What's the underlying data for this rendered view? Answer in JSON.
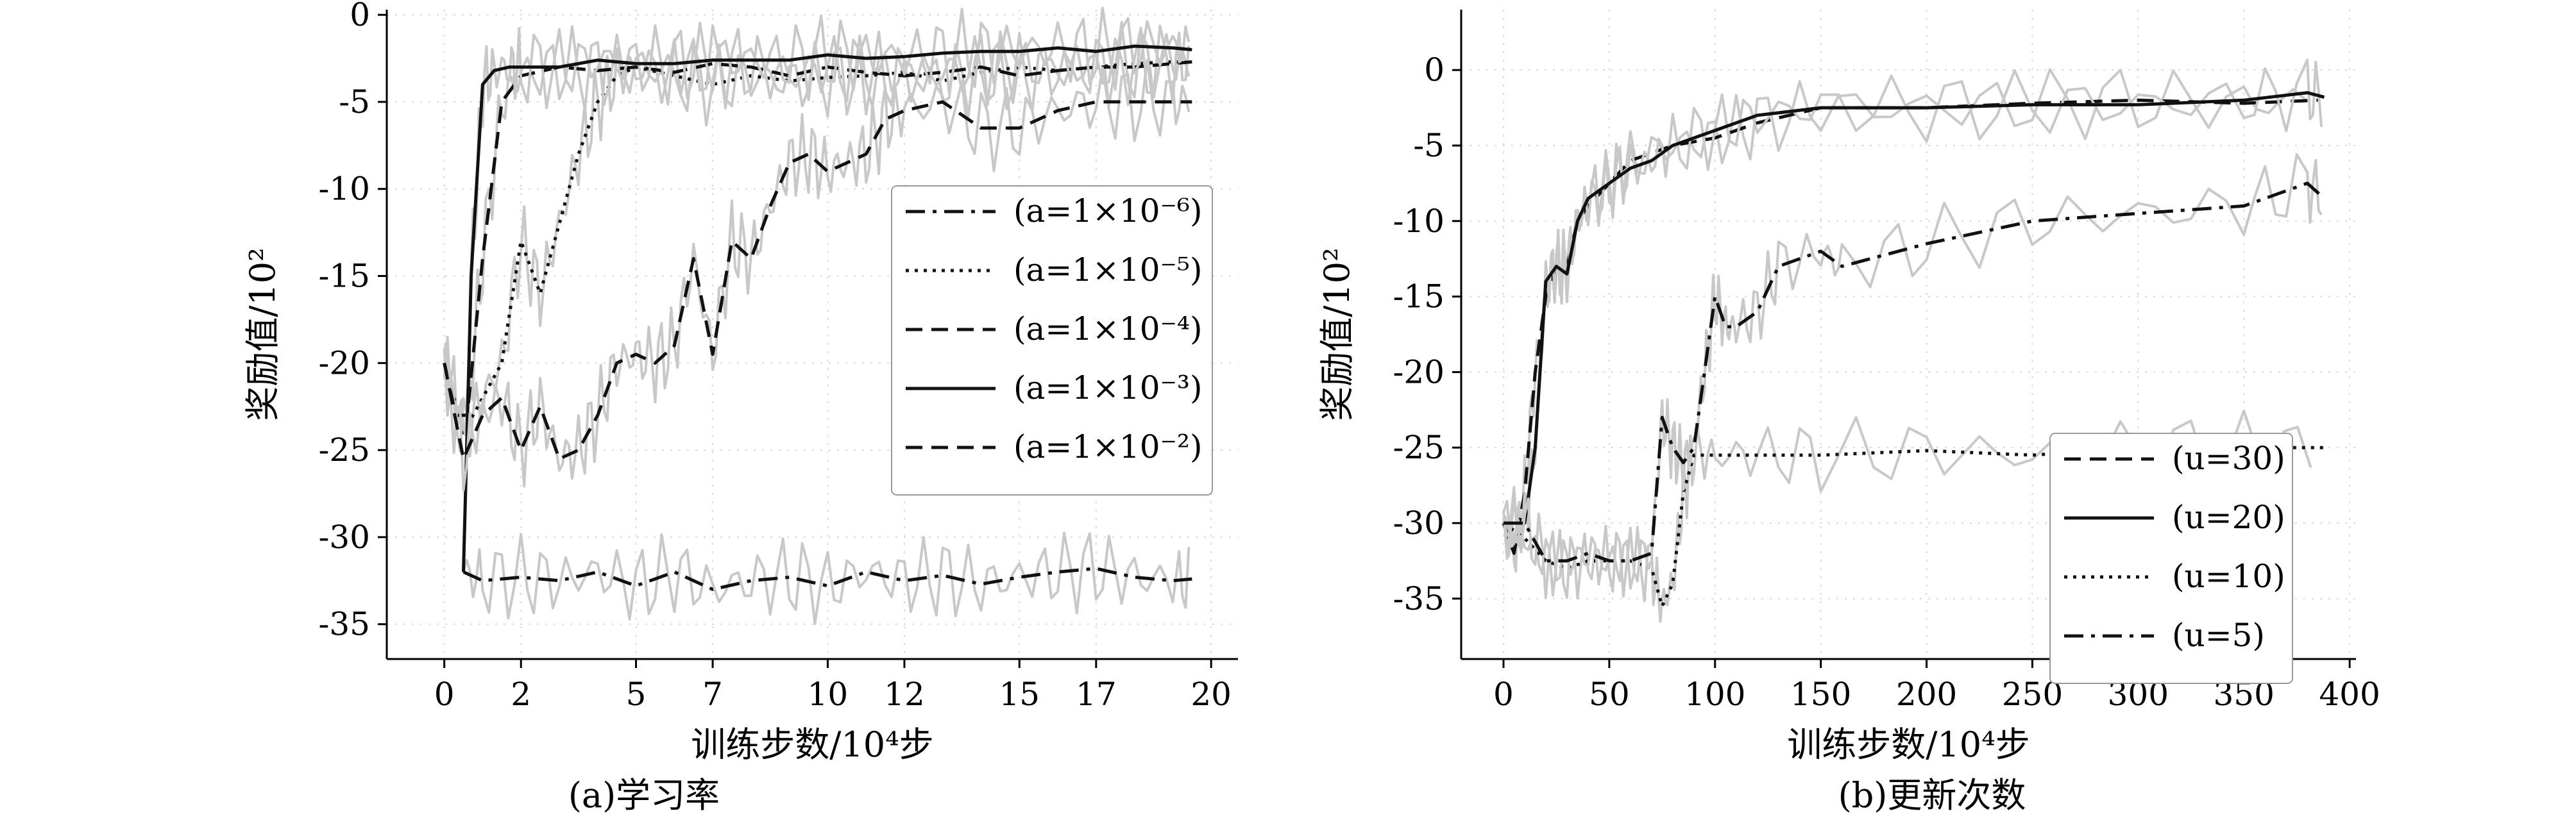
{
  "charts": {
    "a": {
      "caption": "(a)学习率",
      "xlabel": "训练步数/10⁴步",
      "ylabel": "奖励值/10²",
      "legend": [
        "(a=1×10⁻⁶)",
        "(a=1×10⁻⁵)",
        "(a=1×10⁻⁴)",
        "(a=1×10⁻³)",
        "(a=1×10⁻²)"
      ]
    },
    "b": {
      "caption": "(b)更新次数",
      "xlabel": "训练步数/10⁴步",
      "ylabel": "奖励值/10²",
      "legend": [
        "(u=30)",
        "(u=20)",
        "(u=10)",
        "(u=5)"
      ]
    }
  },
  "chart_data": [
    {
      "type": "line",
      "xlim": [
        -1.5,
        20.7
      ],
      "ylim": [
        -37,
        0.3
      ],
      "xticks": [
        0,
        2,
        5,
        7,
        10,
        12,
        15,
        17,
        20
      ],
      "yticks": [
        0,
        -5,
        -10,
        -15,
        -20,
        -25,
        -30,
        -35
      ],
      "grid": true,
      "legend_position": "center-right",
      "series": [
        {
          "name": "(a=1×10⁻⁶)",
          "style": "dashdot",
          "x": [
            0.5,
            1,
            2,
            3,
            4,
            5,
            6,
            7,
            8,
            9,
            10,
            11,
            12,
            13,
            14,
            15,
            16,
            17,
            18,
            19,
            19.5
          ],
          "y": [
            -32,
            -32.5,
            -32.3,
            -32.5,
            -32,
            -32.8,
            -32,
            -33,
            -32.5,
            -32.3,
            -32.8,
            -32,
            -32.5,
            -32.2,
            -32.7,
            -32.3,
            -32,
            -31.8,
            -32.3,
            -32.5,
            -32.4
          ]
        },
        {
          "name": "(a=1×10⁻⁵)",
          "style": "dotted",
          "x": [
            0,
            0.5,
            1,
            1.5,
            2,
            2.5,
            3,
            3.5,
            4,
            4.5,
            5,
            6,
            7,
            8,
            9,
            10,
            11,
            12,
            13,
            14,
            15,
            16,
            17,
            18,
            19,
            19.5
          ],
          "y": [
            -20,
            -24,
            -22,
            -20,
            -13,
            -16,
            -12,
            -8,
            -5,
            -3.5,
            -3,
            -3.5,
            -4,
            -3.5,
            -3.8,
            -3.6,
            -3.5,
            -3.3,
            -3.8,
            -3.3,
            -3,
            -3.2,
            -3,
            -2.8,
            -2.7,
            -2.7
          ]
        },
        {
          "name": "(a=1×10⁻⁴)",
          "style": "dashed",
          "x": [
            0,
            0.3,
            0.6,
            1,
            1.5,
            2,
            3,
            4,
            5,
            6,
            7,
            8,
            9,
            10,
            11,
            12,
            13,
            14,
            15,
            16,
            17,
            18,
            19,
            19.5
          ],
          "y": [
            -20,
            -23,
            -23,
            -14,
            -5,
            -3.5,
            -3,
            -3.2,
            -3,
            -3.3,
            -2.8,
            -3,
            -3.5,
            -3,
            -3.3,
            -3.5,
            -3.3,
            -3,
            -3.5,
            -3.2,
            -3,
            -3,
            -2.8,
            -2.7
          ]
        },
        {
          "name": "(a=1×10⁻³)",
          "style": "solid",
          "x": [
            0.5,
            0.7,
            1,
            1.3,
            1.7,
            2,
            3,
            4,
            5,
            6,
            7,
            8,
            9,
            10,
            11,
            12,
            13,
            14,
            15,
            16,
            17,
            18,
            19,
            19.5
          ],
          "y": [
            -32,
            -15,
            -4,
            -3.2,
            -3,
            -3,
            -3,
            -2.6,
            -2.8,
            -2.8,
            -2.6,
            -2.6,
            -2.6,
            -2.3,
            -2.5,
            -2.4,
            -2.2,
            -2.1,
            -2.1,
            -1.9,
            -2.1,
            -1.8,
            -1.9,
            -2
          ]
        },
        {
          "name": "(a=1×10⁻²)",
          "style": "dashed",
          "x": [
            0,
            0.5,
            1,
            1.5,
            2,
            2.5,
            3,
            3.5,
            4,
            4.5,
            5,
            5.5,
            6,
            6.5,
            7,
            7.5,
            8,
            8.5,
            9,
            9.5,
            10,
            10.5,
            11,
            11.5,
            12,
            13,
            14,
            15,
            16,
            17,
            18,
            19,
            19.5
          ],
          "y": [
            -20,
            -25.5,
            -23,
            -22,
            -25,
            -22.5,
            -25.5,
            -25,
            -23,
            -20,
            -19.5,
            -20,
            -19,
            -14,
            -19.5,
            -13,
            -14,
            -11,
            -8.5,
            -8,
            -9,
            -8.5,
            -8,
            -6,
            -5.5,
            -5,
            -6.5,
            -6.5,
            -5.5,
            -5,
            -5,
            -5,
            -5
          ]
        }
      ]
    },
    {
      "type": "line",
      "xlim": [
        -20,
        403
      ],
      "ylim": [
        -39,
        4
      ],
      "xticks": [
        0,
        50,
        100,
        150,
        200,
        250,
        300,
        350,
        400
      ],
      "yticks": [
        0,
        -5,
        -10,
        -15,
        -20,
        -25,
        -30,
        -35
      ],
      "grid": true,
      "legend_position": "bottom-right",
      "series": [
        {
          "name": "(u=30)",
          "style": "dashed",
          "x": [
            0,
            5,
            10,
            15,
            20,
            25,
            30,
            35,
            40,
            50,
            60,
            80,
            100,
            120,
            150,
            200,
            250,
            300,
            350,
            385
          ],
          "y": [
            -30,
            -32,
            -28,
            -20,
            -15,
            -13,
            -13,
            -10,
            -9,
            -7.5,
            -6,
            -5,
            -4.5,
            -3.5,
            -2.5,
            -2.5,
            -2.2,
            -2,
            -2.2,
            -2
          ]
        },
        {
          "name": "(u=20)",
          "style": "solid",
          "x": [
            0,
            10,
            15,
            20,
            25,
            30,
            35,
            40,
            50,
            60,
            70,
            80,
            100,
            120,
            150,
            200,
            250,
            300,
            350,
            380,
            388
          ],
          "y": [
            -30,
            -30,
            -25,
            -14,
            -13,
            -13.5,
            -10,
            -8.5,
            -7.5,
            -6.5,
            -6,
            -5,
            -4,
            -3,
            -2.5,
            -2.5,
            -2.3,
            -2.3,
            -2,
            -1.5,
            -1.8
          ]
        },
        {
          "name": "(u=10)",
          "style": "dotted",
          "x": [
            0,
            10,
            20,
            30,
            40,
            50,
            60,
            70,
            75,
            80,
            85,
            90,
            100,
            120,
            150,
            200,
            250,
            300,
            350,
            388
          ],
          "y": [
            -30,
            -31,
            -32.5,
            -33,
            -32.5,
            -32.5,
            -32.5,
            -33,
            -35.5,
            -34,
            -28,
            -25.5,
            -25.5,
            -25.5,
            -25.5,
            -25.2,
            -25.5,
            -25,
            -25,
            -25
          ]
        },
        {
          "name": "(u=5)",
          "style": "dashdot",
          "x": [
            0,
            10,
            20,
            30,
            40,
            50,
            60,
            70,
            75,
            80,
            85,
            90,
            95,
            100,
            105,
            110,
            120,
            130,
            150,
            160,
            200,
            250,
            300,
            350,
            380,
            388
          ],
          "y": [
            -30,
            -30,
            -32.5,
            -32.5,
            -32,
            -32.5,
            -32.5,
            -32,
            -23,
            -25,
            -26,
            -25,
            -20,
            -15,
            -17,
            -17,
            -16,
            -13,
            -12,
            -13,
            -11.5,
            -10,
            -9.5,
            -9,
            -7.5,
            -8.5
          ]
        }
      ]
    }
  ]
}
